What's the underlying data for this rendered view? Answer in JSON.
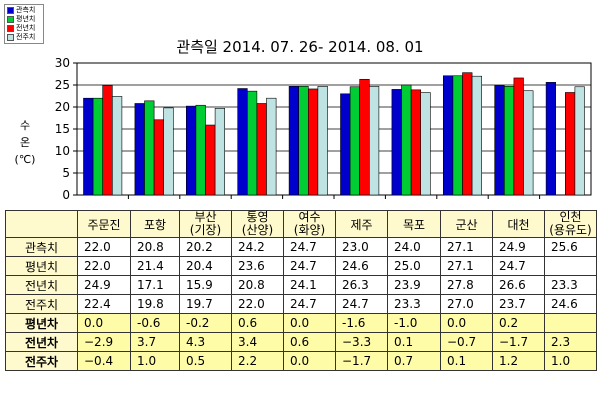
{
  "title": "관측일 2014. 07. 26-  2014. 08. 01",
  "y_axis_label": [
    "수",
    "온",
    "(℃)"
  ],
  "legend": [
    {
      "label": "관측치",
      "color": "#0000cc"
    },
    {
      "label": "평년치",
      "color": "#00cc33"
    },
    {
      "label": "전년치",
      "color": "#ff0000"
    },
    {
      "label": "전주치",
      "color": "#bfe3e3"
    }
  ],
  "chart_data": {
    "type": "bar",
    "title": "관측일 2014. 07. 26-  2014. 08. 01",
    "ylabel": "수온(℃)",
    "ylim": [
      0,
      30
    ],
    "yticks": [
      0,
      5,
      10,
      15,
      20,
      25,
      30
    ],
    "grid": true,
    "categories": [
      "주문진",
      "포항",
      "부산(기장)",
      "통영(산양)",
      "여수(화양)",
      "제주",
      "목포",
      "군산",
      "대천",
      "인천(용유도)"
    ],
    "series": [
      {
        "name": "관측치",
        "color": "#0000cc",
        "values": [
          22.0,
          20.8,
          20.2,
          24.2,
          24.7,
          23.0,
          24.0,
          27.1,
          24.9,
          25.6
        ]
      },
      {
        "name": "평년치",
        "color": "#00cc33",
        "values": [
          22.0,
          21.4,
          20.4,
          23.6,
          24.7,
          24.6,
          25.0,
          27.1,
          24.7,
          null
        ]
      },
      {
        "name": "전년치",
        "color": "#ff0000",
        "values": [
          24.9,
          17.1,
          15.9,
          20.8,
          24.1,
          26.3,
          23.9,
          27.8,
          26.6,
          23.3
        ]
      },
      {
        "name": "전주치",
        "color": "#bfe3e3",
        "values": [
          22.4,
          19.8,
          19.7,
          22.0,
          24.7,
          24.7,
          23.3,
          27.0,
          23.7,
          24.6
        ]
      }
    ]
  },
  "table": {
    "columns": [
      {
        "lines": [
          "주문진"
        ]
      },
      {
        "lines": [
          "포항"
        ]
      },
      {
        "lines": [
          "부산",
          "(기장)"
        ]
      },
      {
        "lines": [
          "통영",
          "(산양)"
        ]
      },
      {
        "lines": [
          "여수",
          "(화양)"
        ]
      },
      {
        "lines": [
          "제주"
        ]
      },
      {
        "lines": [
          "목포"
        ]
      },
      {
        "lines": [
          "군산"
        ]
      },
      {
        "lines": [
          "대천"
        ]
      },
      {
        "lines": [
          "인천",
          "(용유도)"
        ]
      }
    ],
    "rows": [
      {
        "label": "관측치",
        "cls": "row-obs",
        "cells": [
          "22.0",
          "20.8",
          "20.2",
          "24.2",
          "24.7",
          "23.0",
          "24.0",
          "27.1",
          "24.9",
          "25.6"
        ]
      },
      {
        "label": "평년치",
        "cls": "row-norm",
        "cells": [
          "22.0",
          "21.4",
          "20.4",
          "23.6",
          "24.7",
          "24.6",
          "25.0",
          "27.1",
          "24.7",
          ""
        ]
      },
      {
        "label": "전년치",
        "cls": "row-prev",
        "cells": [
          "24.9",
          "17.1",
          "15.9",
          "20.8",
          "24.1",
          "26.3",
          "23.9",
          "27.8",
          "26.6",
          "23.3"
        ]
      },
      {
        "label": "전주치",
        "cls": "row-week",
        "cells": [
          "22.4",
          "19.8",
          "19.7",
          "22.0",
          "24.7",
          "24.7",
          "23.3",
          "27.0",
          "23.7",
          "24.6"
        ]
      },
      {
        "label": "평년차",
        "cls": "row-diff",
        "cells": [
          "0.0",
          "-0.6",
          "-0.2",
          "0.6",
          "0.0",
          "-1.6",
          "-1.0",
          "0.0",
          "0.2",
          ""
        ]
      },
      {
        "label": "전년차",
        "cls": "row-diff",
        "cells": [
          "−2.9",
          "3.7",
          "4.3",
          "3.4",
          "0.6",
          "−3.3",
          "0.1",
          "−0.7",
          "−1.7",
          "2.3"
        ]
      },
      {
        "label": "전주차",
        "cls": "row-diff",
        "cells": [
          "−0.4",
          "1.0",
          "0.5",
          "2.2",
          "0.0",
          "−1.7",
          "0.7",
          "0.1",
          "1.2",
          "1.0"
        ]
      }
    ]
  }
}
